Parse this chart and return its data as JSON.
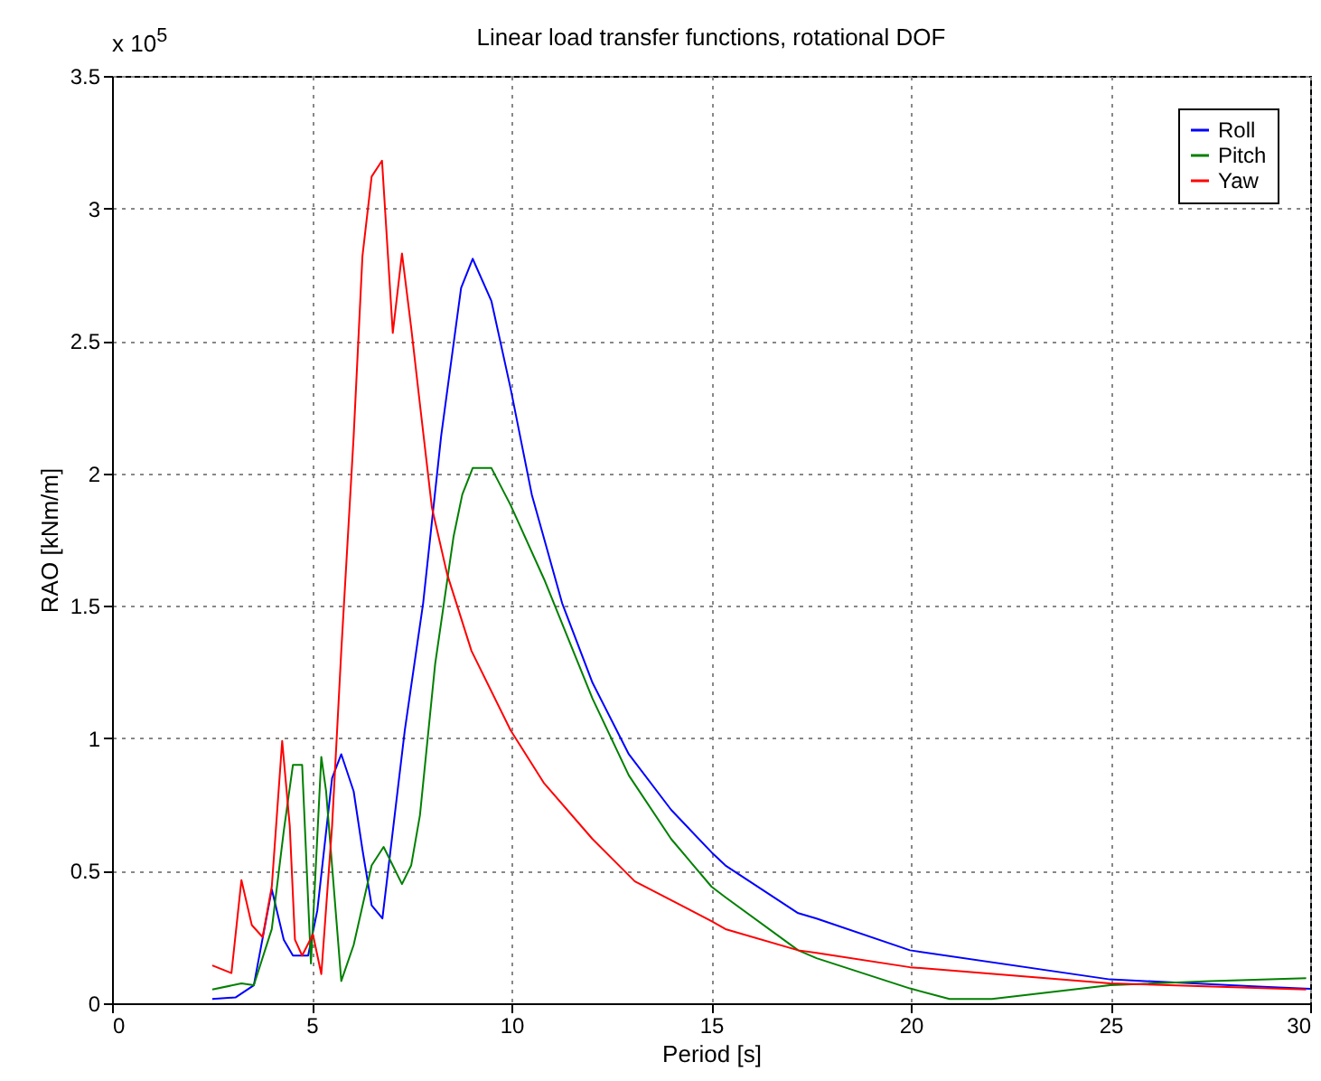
{
  "chart_data": {
    "type": "line",
    "title": "Linear load transfer functions, rotational DOF",
    "xlabel": "Period [s]",
    "ylabel": "RAO [kNm/m]",
    "annotations": [
      "x 10$^{5}$"
    ],
    "xlim": [
      0,
      30
    ],
    "xticks": [
      0,
      5,
      10,
      15,
      20,
      25,
      30
    ],
    "ylim": [
      0,
      3.5
    ],
    "yticks": [
      0,
      0.5,
      1,
      1.5,
      2,
      2.5,
      3,
      3.5
    ],
    "grid": true,
    "legend": "top right",
    "line_style": "solid",
    "marker": "none",
    "series": [
      {
        "name": "Roll",
        "color": "#0000ff",
        "x": [
          2.51,
          3.09,
          3.55,
          4.0,
          4.3,
          4.53,
          4.91,
          5.14,
          5.51,
          5.74,
          6.05,
          6.27,
          6.5,
          6.77,
          7.33,
          7.79,
          8.24,
          8.74,
          9.03,
          9.5,
          9.98,
          10.51,
          11.27,
          12.03,
          12.94,
          14.0,
          15.01,
          15.36,
          17.18,
          17.64,
          19.98,
          24.99,
          28.7,
          30
        ],
        "values": [
          0.016,
          0.022,
          0.068,
          0.43,
          0.24,
          0.18,
          0.18,
          0.35,
          0.85,
          0.94,
          0.8,
          0.58,
          0.37,
          0.32,
          1.03,
          1.51,
          2.14,
          2.7,
          2.81,
          2.65,
          2.32,
          1.92,
          1.51,
          1.21,
          0.94,
          0.73,
          0.57,
          0.52,
          0.34,
          0.32,
          0.2,
          0.09,
          0.063,
          0.055
        ]
      },
      {
        "name": "Pitch",
        "color": "#008000",
        "x": [
          2.51,
          3.24,
          3.55,
          4.0,
          4.3,
          4.53,
          4.76,
          4.98,
          5.24,
          5.36,
          5.74,
          6.05,
          6.5,
          6.8,
          7.26,
          7.49,
          7.71,
          8.09,
          8.55,
          8.77,
          9.03,
          9.5,
          9.98,
          10.82,
          12.03,
          12.94,
          14.0,
          15.01,
          15.36,
          17.18,
          17.64,
          19.98,
          20.97,
          22.03,
          24.99,
          27.5,
          29.9
        ],
        "values": [
          0.052,
          0.075,
          0.068,
          0.28,
          0.65,
          0.9,
          0.9,
          0.15,
          0.93,
          0.8,
          0.084,
          0.22,
          0.52,
          0.59,
          0.45,
          0.52,
          0.71,
          1.28,
          1.76,
          1.92,
          2.02,
          2.02,
          1.88,
          1.6,
          1.15,
          0.86,
          0.62,
          0.44,
          0.4,
          0.2,
          0.17,
          0.056,
          0.016,
          0.016,
          0.068,
          0.084,
          0.095
        ]
      },
      {
        "name": "Yaw",
        "color": "#ff0000",
        "x": [
          2.51,
          2.99,
          3.24,
          3.5,
          3.77,
          4.0,
          4.26,
          4.45,
          4.58,
          4.76,
          5.03,
          5.24,
          5.51,
          5.74,
          6.05,
          6.27,
          6.5,
          6.76,
          7.03,
          7.26,
          7.49,
          7.71,
          8.01,
          8.39,
          9.0,
          9.98,
          10.82,
          12.03,
          13.09,
          15.01,
          15.36,
          17.18,
          17.64,
          19.98,
          24.99,
          29.9
        ],
        "values": [
          0.143,
          0.114,
          0.465,
          0.295,
          0.25,
          0.44,
          0.99,
          0.67,
          0.24,
          0.18,
          0.26,
          0.11,
          0.67,
          1.33,
          2.14,
          2.82,
          3.12,
          3.18,
          2.53,
          2.83,
          2.55,
          2.26,
          1.87,
          1.62,
          1.33,
          1.03,
          0.83,
          0.62,
          0.46,
          0.31,
          0.28,
          0.2,
          0.19,
          0.136,
          0.075,
          0.052
        ]
      }
    ]
  }
}
